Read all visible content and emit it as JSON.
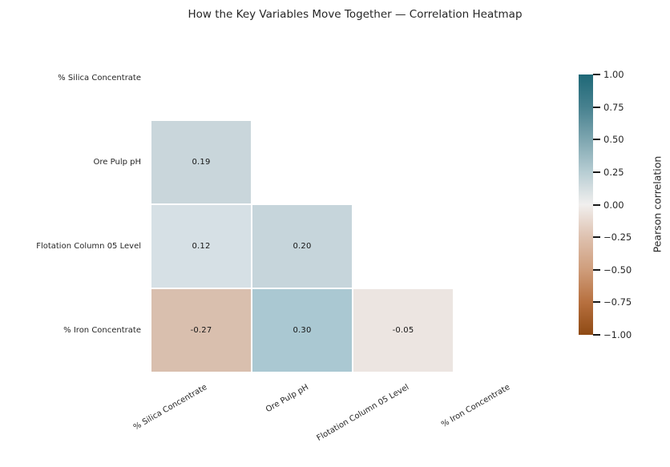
{
  "title": "How the Key Variables Move Together — Correlation Heatmap",
  "chart_data": {
    "type": "heatmap",
    "subtype": "pearson-correlation-lower-triangle",
    "masked": "diagonal and upper triangle (blank white)",
    "variables": [
      "% Silica Concentrate",
      "Ore Pulp pH",
      "Flotation Column 05 Level",
      "% Iron Concentrate"
    ],
    "cells": [
      {
        "row": 1,
        "col": 0,
        "value": 0.19,
        "label": "0.19",
        "color": "#c9d6db"
      },
      {
        "row": 2,
        "col": 0,
        "value": 0.12,
        "label": "0.12",
        "color": "#d6e0e5"
      },
      {
        "row": 2,
        "col": 1,
        "value": 0.2,
        "label": "0.20",
        "color": "#c6d5db"
      },
      {
        "row": 3,
        "col": 0,
        "value": -0.27,
        "label": "-0.27",
        "color": "#d9bfae"
      },
      {
        "row": 3,
        "col": 1,
        "value": 0.3,
        "label": "0.30",
        "color": "#aac8d2"
      },
      {
        "row": 3,
        "col": 2,
        "value": -0.05,
        "label": "-0.05",
        "color": "#ece5e1"
      }
    ],
    "colorbar": {
      "label": "Pearson correlation",
      "range": [
        -1,
        1
      ],
      "ticks": [
        "1.00",
        "0.75",
        "0.50",
        "0.25",
        "0.00",
        "−0.25",
        "−0.50",
        "−0.75",
        "−1.00"
      ],
      "gradient_top_to_bottom": [
        "#1e6877",
        "#47818f",
        "#7ea6b0",
        "#b7cdd3",
        "#f1efee",
        "#dec1af",
        "#cf9d7b",
        "#b7703f",
        "#8f4a14"
      ]
    },
    "legend_position": "right colorbar",
    "grid": "off",
    "text_color": "#262626"
  }
}
